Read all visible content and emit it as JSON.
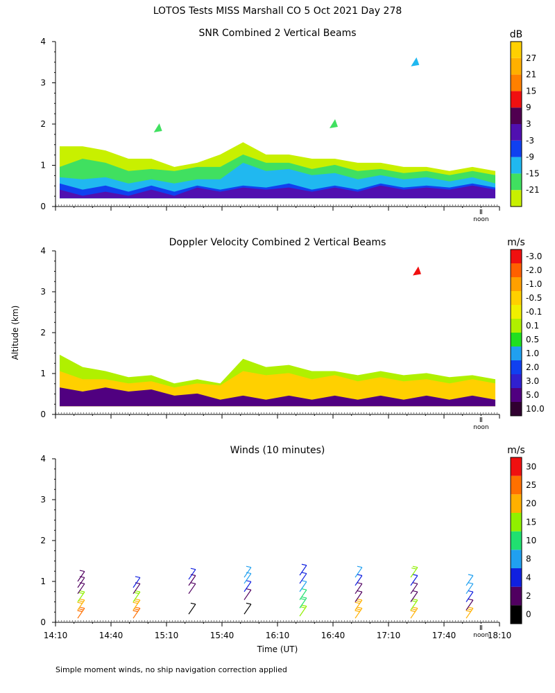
{
  "title": "LOTOS Tests MISS Marshall CO   5 Oct 2021 Day 278",
  "y_axis_label": "Altitude (km)",
  "x_axis_label": "Time (UT)",
  "footnote": "Simple moment winds, no ship navigation correction applied",
  "noon_label": "noon",
  "chart_data": [
    {
      "type": "heatmap",
      "title": "SNR Combined 2 Vertical Beams",
      "unit": "dB",
      "ylim": [
        0,
        4
      ],
      "yticks": [
        "0",
        "1",
        "2",
        "3",
        "4"
      ],
      "xlim": [
        "14:10",
        "18:10"
      ],
      "colorbar": {
        "labels": [
          "-21",
          "-15",
          "-9",
          "-3",
          "3",
          "9",
          "15",
          "21",
          "27"
        ],
        "colors": [
          "#c8f000",
          "#40e060",
          "#20b8f0",
          "#1040f0",
          "#5010b0",
          "#500050",
          "#f01010",
          "#ff8000",
          "#ffb000",
          "#ffd000"
        ]
      },
      "layers": [
        {
          "level": "-21",
          "color": "#c8f000",
          "top_km": [
            1.4,
            1.5,
            1.3,
            1.2,
            1.1,
            1.0,
            1.0,
            1.3,
            1.5,
            1.3,
            1.2,
            1.2,
            1.1,
            1.1,
            1.0,
            1.0,
            0.9,
            0.9,
            0.9,
            0.9
          ]
        },
        {
          "level": "-15",
          "color": "#40e060",
          "top_km": [
            0.9,
            1.2,
            1.0,
            0.9,
            0.85,
            0.9,
            0.9,
            1.0,
            1.2,
            1.1,
            1.0,
            0.95,
            0.95,
            0.9,
            0.85,
            0.85,
            0.8,
            0.8,
            0.8,
            0.8
          ]
        },
        {
          "level": "-9",
          "color": "#20b8f0",
          "top_km": [
            0.65,
            0.7,
            0.65,
            0.6,
            0.6,
            0.6,
            0.6,
            0.7,
            1.0,
            0.9,
            0.85,
            0.8,
            0.75,
            0.7,
            0.7,
            0.7,
            0.65,
            0.65,
            0.65,
            0.6
          ]
        },
        {
          "level": "-3",
          "color": "#1040f0",
          "top_km": [
            0.5,
            0.45,
            0.45,
            0.4,
            0.45,
            0.4,
            0.45,
            0.45,
            0.45,
            0.5,
            0.5,
            0.45,
            0.45,
            0.45,
            0.5,
            0.5,
            0.45,
            0.5,
            0.5,
            0.5
          ]
        },
        {
          "level": "3",
          "color": "#5010b0",
          "top_km": [
            0.35,
            0.3,
            0.3,
            0.3,
            0.35,
            0.3,
            0.4,
            0.4,
            0.4,
            0.45,
            0.4,
            0.4,
            0.4,
            0.4,
            0.45,
            0.45,
            0.4,
            0.45,
            0.45,
            0.45
          ]
        }
      ],
      "bottom_km": 0.2,
      "patches": [
        {
          "t": "17:24",
          "alt_km": 3.5,
          "color": "#20b8f0"
        },
        {
          "t": "16:40",
          "alt_km": 2.0,
          "color": "#40e060"
        },
        {
          "t": "15:05",
          "alt_km": 1.9,
          "color": "#40e060"
        }
      ]
    },
    {
      "type": "heatmap",
      "title": "Doppler Velocity Combined 2 Vertical Beams",
      "unit": "m/s",
      "ylim": [
        0,
        4
      ],
      "yticks": [
        "0",
        "1",
        "2",
        "3",
        "4"
      ],
      "xlim": [
        "14:10",
        "18:10"
      ],
      "colorbar": {
        "labels": [
          "10.0",
          "5.0",
          "3.0",
          "2.0",
          "1.0",
          "0.5",
          "0.1",
          "-0.1",
          "-0.5",
          "-1.0",
          "-2.0",
          "-3.0"
        ],
        "colors": [
          "#300030",
          "#500080",
          "#3020d0",
          "#1040f0",
          "#20a0f0",
          "#20e020",
          "#b0f000",
          "#f0f000",
          "#ffd000",
          "#ffa000",
          "#ff6000",
          "#f01010"
        ]
      },
      "layers": [
        {
          "level": "0.1",
          "color": "#b0f000",
          "top_km": [
            1.4,
            1.2,
            1.0,
            0.95,
            0.9,
            0.8,
            0.8,
            0.8,
            1.3,
            1.2,
            1.15,
            1.1,
            1.0,
            1.0,
            1.0,
            1.0,
            0.95,
            0.95,
            0.9,
            0.9
          ]
        },
        {
          "level": "-0.5",
          "color": "#ffd000",
          "top_km": [
            1.0,
            0.9,
            0.8,
            0.8,
            0.75,
            0.7,
            0.7,
            0.75,
            1.0,
            1.0,
            0.95,
            0.9,
            0.9,
            0.85,
            0.85,
            0.85,
            0.8,
            0.8,
            0.8,
            0.8
          ]
        },
        {
          "level": "10.0",
          "color": "#500080",
          "top_km": [
            0.6,
            0.6,
            0.6,
            0.6,
            0.55,
            0.5,
            0.45,
            0.4,
            0.4,
            0.4,
            0.4,
            0.4,
            0.4,
            0.4,
            0.4,
            0.4,
            0.4,
            0.4,
            0.4,
            0.4
          ]
        }
      ],
      "bottom_km": 0.2,
      "patches": [
        {
          "t": "17:25",
          "alt_km": 3.5,
          "color": "#f01010"
        }
      ]
    },
    {
      "type": "wind_barbs",
      "title": "Winds (10 minutes)",
      "unit": "m/s",
      "ylim": [
        0,
        4
      ],
      "yticks": [
        "0",
        "1",
        "2",
        "3",
        "4"
      ],
      "xticks": [
        "14:10",
        "14:40",
        "15:10",
        "15:40",
        "16:10",
        "16:40",
        "17:10",
        "17:40",
        "18:10"
      ],
      "colorbar": {
        "labels": [
          "0",
          "2",
          "4",
          "8",
          "10",
          "15",
          "20",
          "25",
          "30"
        ],
        "colors": [
          "#000000",
          "#500060",
          "#1020e0",
          "#20a0f0",
          "#20e070",
          "#90f000",
          "#ffb000",
          "#ff7000",
          "#f01010"
        ]
      },
      "profiles": [
        {
          "time": "14:22",
          "barbs": [
            {
              "alt_km": 0.1,
              "speed": 25
            },
            {
              "alt_km": 0.3,
              "speed": 22
            },
            {
              "alt_km": 0.5,
              "speed": 15
            },
            {
              "alt_km": 0.7,
              "speed": 3
            },
            {
              "alt_km": 0.85,
              "speed": 3
            },
            {
              "alt_km": 1.0,
              "speed": 3
            }
          ]
        },
        {
          "time": "14:52",
          "barbs": [
            {
              "alt_km": 0.1,
              "speed": 25
            },
            {
              "alt_km": 0.3,
              "speed": 22
            },
            {
              "alt_km": 0.5,
              "speed": 18
            },
            {
              "alt_km": 0.7,
              "speed": 3
            },
            {
              "alt_km": 0.85,
              "speed": 5
            }
          ]
        },
        {
          "time": "15:22",
          "barbs": [
            {
              "alt_km": 0.2,
              "speed": 1
            },
            {
              "alt_km": 0.7,
              "speed": 3
            },
            {
              "alt_km": 0.9,
              "speed": 3
            },
            {
              "alt_km": 1.05,
              "speed": 5
            }
          ]
        },
        {
          "time": "15:52",
          "barbs": [
            {
              "alt_km": 0.2,
              "speed": 1
            },
            {
              "alt_km": 0.55,
              "speed": 3
            },
            {
              "alt_km": 0.75,
              "speed": 5
            },
            {
              "alt_km": 0.95,
              "speed": 8
            },
            {
              "alt_km": 1.1,
              "speed": 9
            }
          ]
        },
        {
          "time": "16:22",
          "barbs": [
            {
              "alt_km": 0.15,
              "speed": 17
            },
            {
              "alt_km": 0.35,
              "speed": 14
            },
            {
              "alt_km": 0.55,
              "speed": 10
            },
            {
              "alt_km": 0.75,
              "speed": 8
            },
            {
              "alt_km": 0.95,
              "speed": 5
            },
            {
              "alt_km": 1.15,
              "speed": 4
            }
          ]
        },
        {
          "time": "16:52",
          "barbs": [
            {
              "alt_km": 0.1,
              "speed": 22
            },
            {
              "alt_km": 0.3,
              "speed": 20
            },
            {
              "alt_km": 0.5,
              "speed": 3
            },
            {
              "alt_km": 0.7,
              "speed": 3
            },
            {
              "alt_km": 0.9,
              "speed": 5
            },
            {
              "alt_km": 1.1,
              "speed": 9
            }
          ]
        },
        {
          "time": "17:22",
          "barbs": [
            {
              "alt_km": 0.1,
              "speed": 22
            },
            {
              "alt_km": 0.3,
              "speed": 18
            },
            {
              "alt_km": 0.5,
              "speed": 3
            },
            {
              "alt_km": 0.7,
              "speed": 3
            },
            {
              "alt_km": 0.9,
              "speed": 5
            },
            {
              "alt_km": 1.1,
              "speed": 15
            }
          ]
        },
        {
          "time": "17:52",
          "barbs": [
            {
              "alt_km": 0.1,
              "speed": 22
            },
            {
              "alt_km": 0.3,
              "speed": 3
            },
            {
              "alt_km": 0.5,
              "speed": 5
            },
            {
              "alt_km": 0.7,
              "speed": 9
            },
            {
              "alt_km": 0.9,
              "speed": 9
            }
          ]
        }
      ]
    }
  ]
}
